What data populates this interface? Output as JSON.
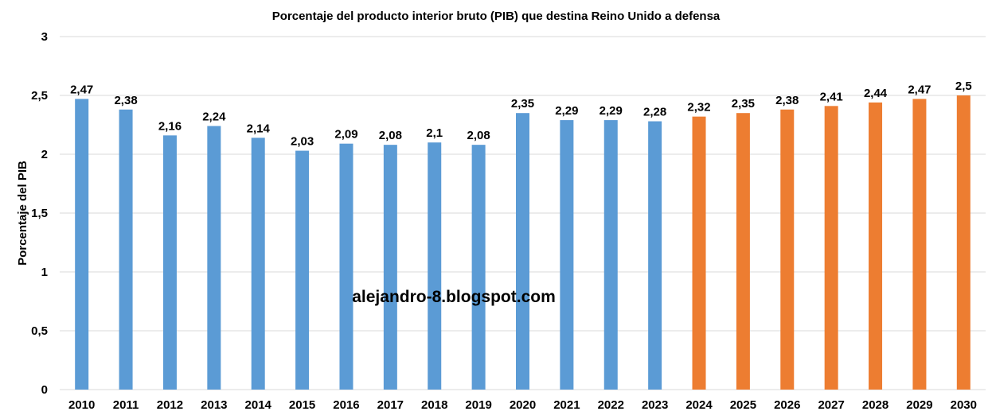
{
  "chart_data": {
    "type": "bar",
    "title": "Porcentaje del producto interior bruto (PIB) que destina Reino Unido a defensa",
    "xlabel": "",
    "ylabel": "Porcentaje del PIB",
    "ylim": [
      0,
      3
    ],
    "yticks": [
      "0",
      "0,5",
      "1",
      "1,5",
      "2",
      "2,5",
      "3"
    ],
    "ytick_values": [
      0,
      0.5,
      1,
      1.5,
      2,
      2.5,
      3
    ],
    "grid": true,
    "legend": "none",
    "categories": [
      "2010",
      "2011",
      "2012",
      "2013",
      "2014",
      "2015",
      "2016",
      "2017",
      "2018",
      "2019",
      "2020",
      "2021",
      "2022",
      "2023",
      "2024",
      "2025",
      "2026",
      "2027",
      "2028",
      "2029",
      "2030"
    ],
    "values": [
      2.47,
      2.38,
      2.16,
      2.24,
      2.14,
      2.03,
      2.09,
      2.08,
      2.1,
      2.08,
      2.35,
      2.29,
      2.29,
      2.28,
      2.32,
      2.35,
      2.38,
      2.41,
      2.44,
      2.47,
      2.5
    ],
    "data_labels": [
      "2,47",
      "2,38",
      "2,16",
      "2,24",
      "2,14",
      "2,03",
      "2,09",
      "2,08",
      "2,1",
      "2,08",
      "2,35",
      "2,29",
      "2,29",
      "2,28",
      "2,32",
      "2,35",
      "2,38",
      "2,41",
      "2,44",
      "2,47",
      "2,5"
    ],
    "bar_colors": [
      "#5b9bd5",
      "#5b9bd5",
      "#5b9bd5",
      "#5b9bd5",
      "#5b9bd5",
      "#5b9bd5",
      "#5b9bd5",
      "#5b9bd5",
      "#5b9bd5",
      "#5b9bd5",
      "#5b9bd5",
      "#5b9bd5",
      "#5b9bd5",
      "#5b9bd5",
      "#ed7d31",
      "#ed7d31",
      "#ed7d31",
      "#ed7d31",
      "#ed7d31",
      "#ed7d31",
      "#ed7d31"
    ],
    "watermark": "alejandro-8.blogspot.com"
  }
}
